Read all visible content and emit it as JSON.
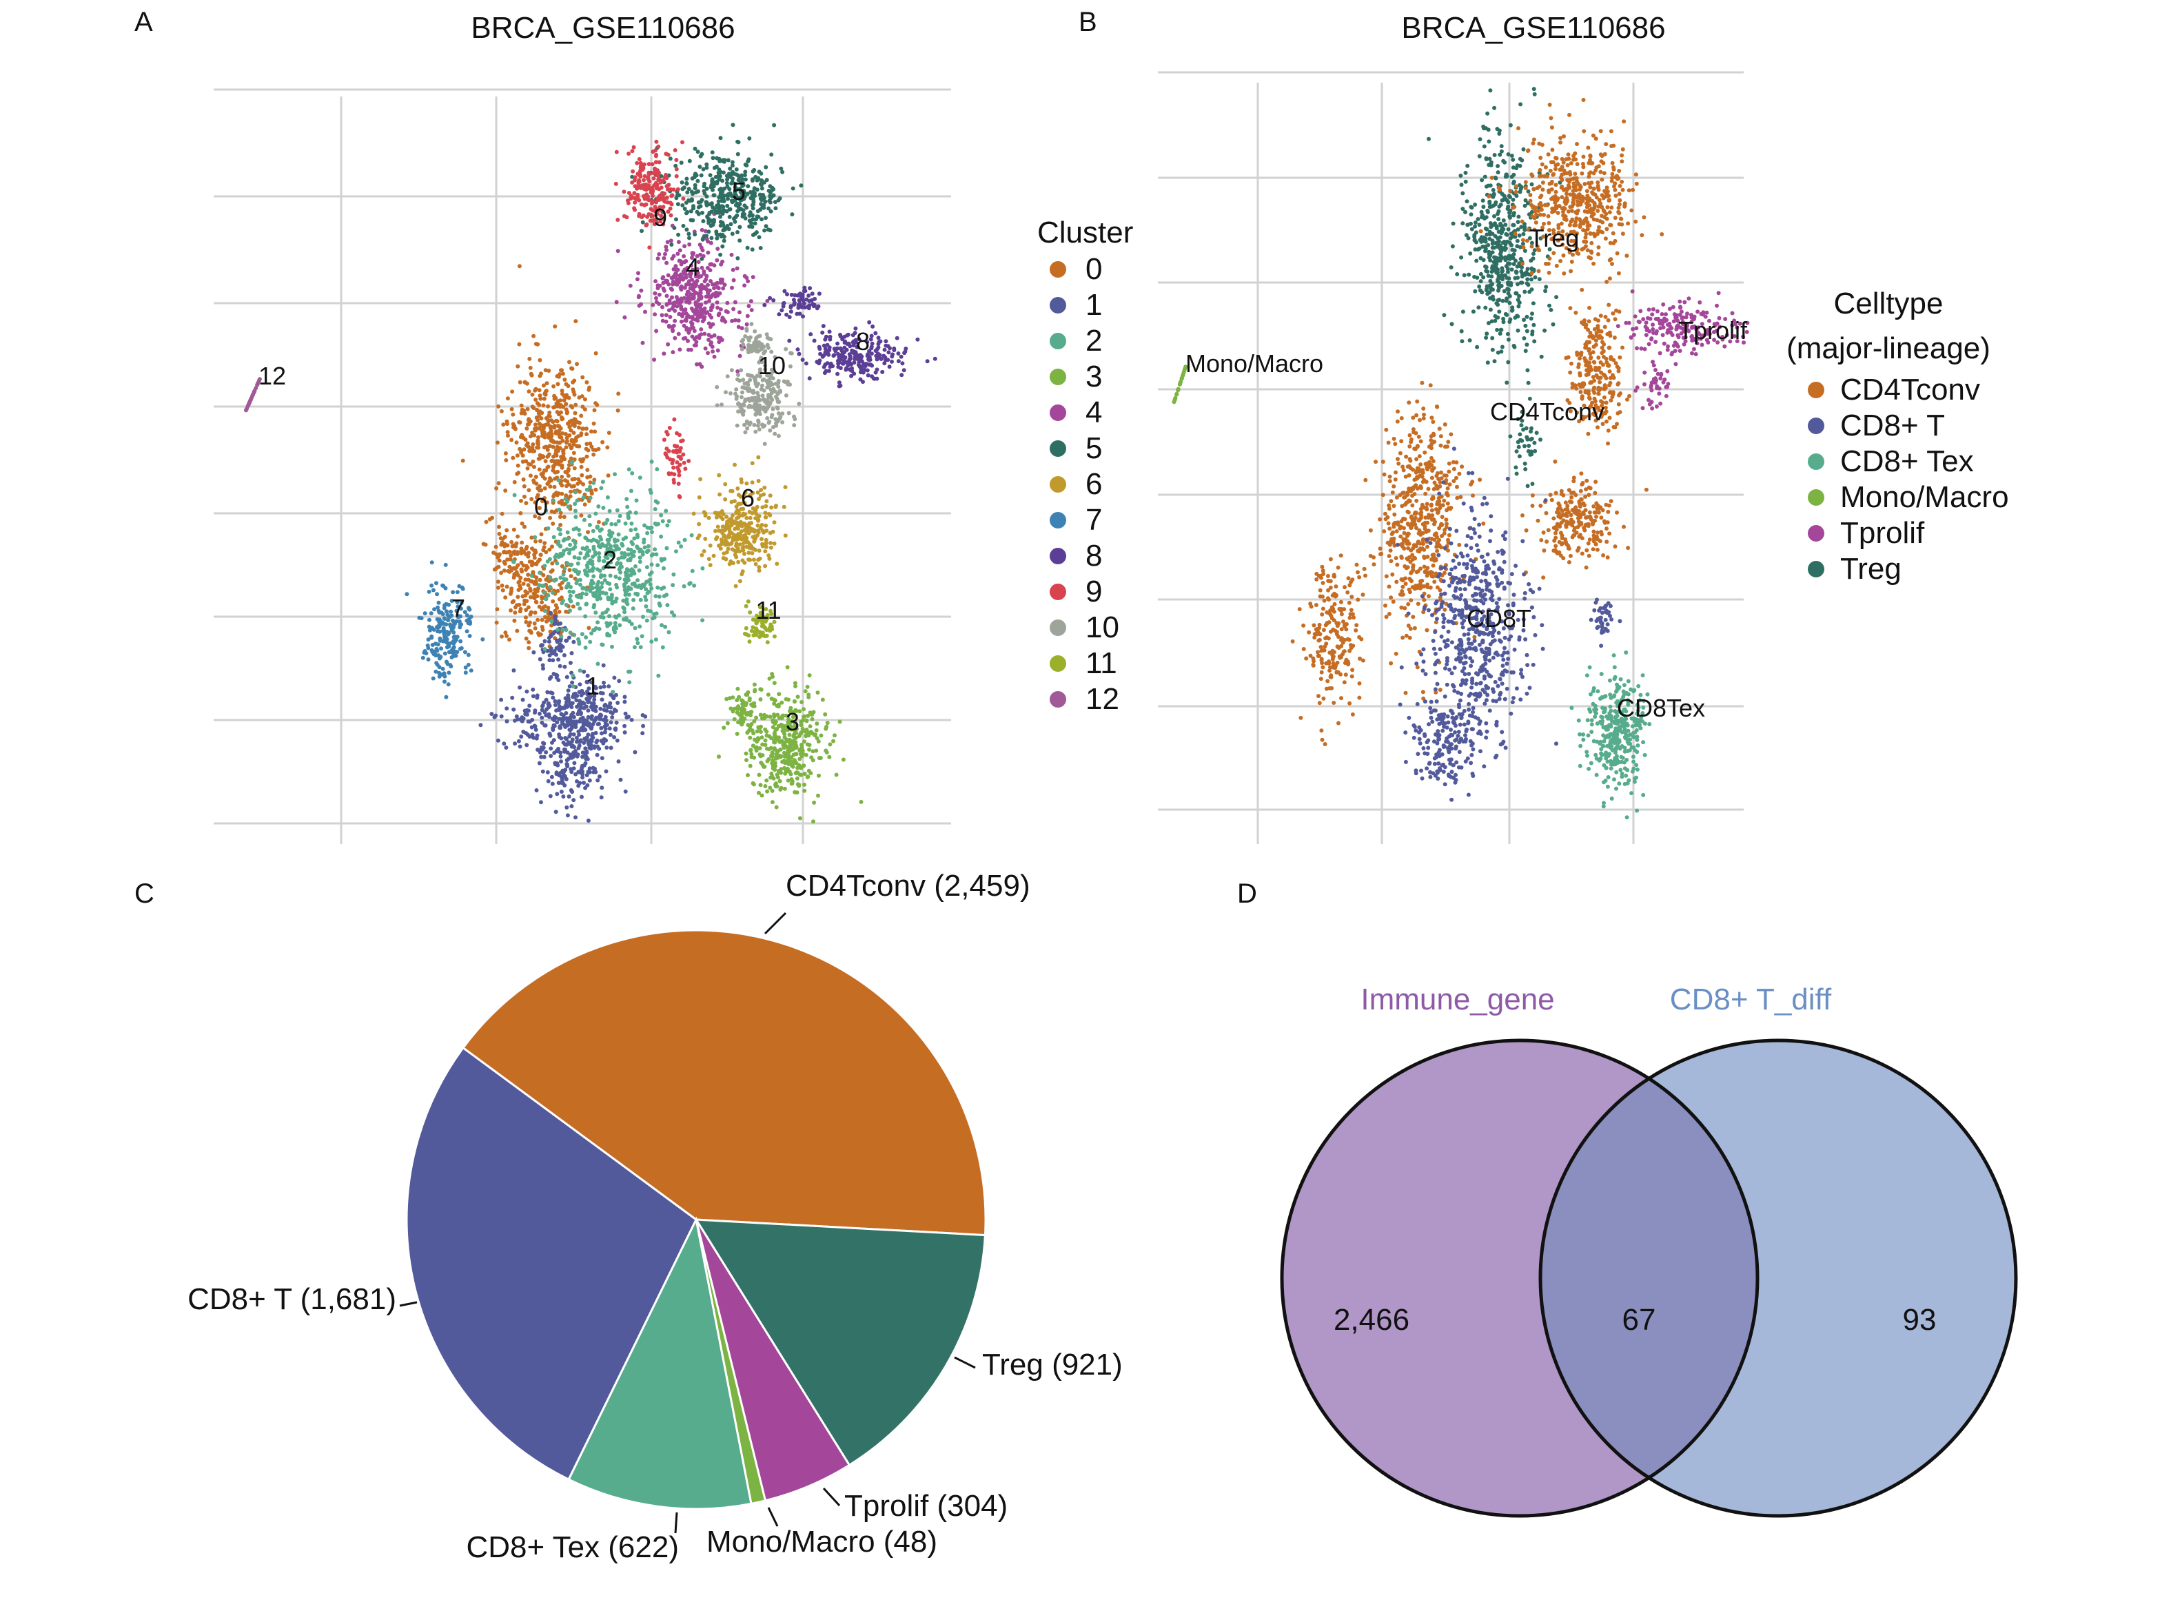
{
  "panels": {
    "A": {
      "letter": "A",
      "title": "BRCA_GSE110686"
    },
    "B": {
      "letter": "B",
      "title": "BRCA_GSE110686"
    },
    "C": {
      "letter": "C"
    },
    "D": {
      "letter": "D"
    }
  },
  "chart_data": [
    {
      "id": "umap-cluster",
      "type": "scatter",
      "title": "BRCA_GSE110686",
      "grid": true,
      "legend": {
        "title": "Cluster",
        "placement": "right",
        "entries": [
          {
            "name": "0",
            "color": "#C66D24"
          },
          {
            "name": "1",
            "color": "#525A9B"
          },
          {
            "name": "2",
            "color": "#56AC8C"
          },
          {
            "name": "3",
            "color": "#7CB342"
          },
          {
            "name": "4",
            "color": "#A4479A"
          },
          {
            "name": "5",
            "color": "#2F6E63"
          },
          {
            "name": "6",
            "color": "#C19A2E"
          },
          {
            "name": "7",
            "color": "#3E82B4"
          },
          {
            "name": "8",
            "color": "#5B3E95"
          },
          {
            "name": "9",
            "color": "#D9434F"
          },
          {
            "name": "10",
            "color": "#9DA59A"
          },
          {
            "name": "11",
            "color": "#9BAF2A"
          },
          {
            "name": "12",
            "color": "#A05A98"
          }
        ]
      },
      "cluster_labels": [
        "0",
        "1",
        "2",
        "3",
        "4",
        "5",
        "6",
        "7",
        "8",
        "9",
        "10",
        "11",
        "12"
      ]
    },
    {
      "id": "umap-celltype",
      "type": "scatter",
      "title": "BRCA_GSE110686",
      "grid": true,
      "legend": {
        "title": [
          "Celltype",
          "(major-lineage)"
        ],
        "placement": "right",
        "entries": [
          {
            "name": "CD4Tconv",
            "color": "#C66D24"
          },
          {
            "name": "CD8+ T",
            "color": "#525A9B"
          },
          {
            "name": "CD8+ Tex",
            "color": "#56AC8C"
          },
          {
            "name": "Mono/Macro",
            "color": "#7CB342"
          },
          {
            "name": "Tprolif",
            "color": "#A4479A"
          },
          {
            "name": "Treg",
            "color": "#2F6E63"
          }
        ]
      },
      "group_labels": [
        "Treg",
        "Tprolif",
        "Mono/Macro",
        "CD4Tconv",
        "CD8T",
        "CD8Tex"
      ]
    },
    {
      "id": "pie-celltype",
      "type": "pie",
      "slices": [
        {
          "name": "CD4Tconv",
          "value": 2459,
          "label": "CD4Tconv (2,459)",
          "color": "#C66D24"
        },
        {
          "name": "Treg",
          "value": 921,
          "label": "Treg (921)",
          "color": "#337367"
        },
        {
          "name": "Tprolif",
          "value": 304,
          "label": "Tprolif (304)",
          "color": "#A4479A"
        },
        {
          "name": "Mono/Macro",
          "value": 48,
          "label": "Mono/Macro (48)",
          "color": "#7CB342"
        },
        {
          "name": "CD8+ Tex",
          "value": 622,
          "label": "CD8+ Tex (622)",
          "color": "#56AC8C"
        },
        {
          "name": "CD8+ T",
          "value": 1681,
          "label": "CD8+ T (1,681)",
          "color": "#525A9B"
        }
      ]
    },
    {
      "id": "venn",
      "type": "venn",
      "sets": [
        {
          "name": "Immune_gene",
          "only": "2,466",
          "color": "#B097C7",
          "label_color": "#8E5AA8"
        },
        {
          "name": "CD8+ T_diff",
          "only": "93",
          "color": "#A6B8D9",
          "label_color": "#6A8FC5"
        }
      ],
      "intersection": "67",
      "intersection_color": "#8B8FBF"
    }
  ]
}
